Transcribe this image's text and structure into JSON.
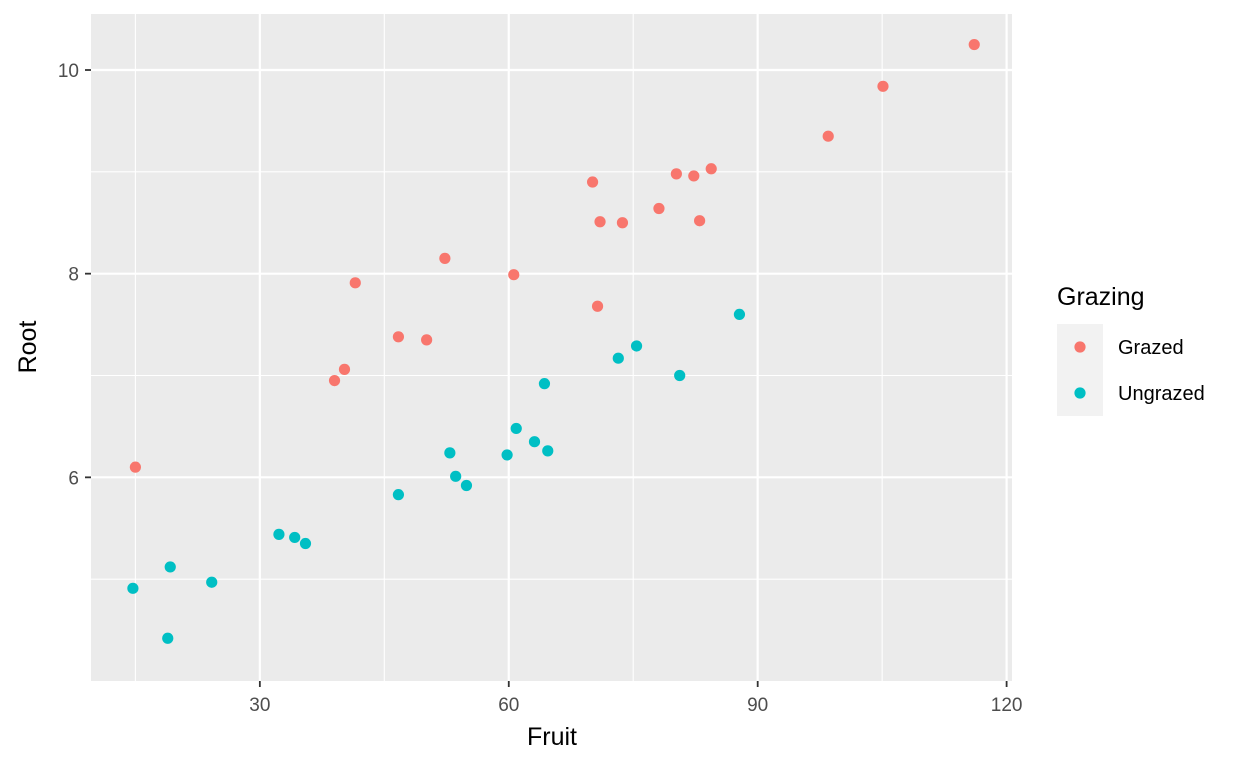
{
  "chart_data": {
    "type": "scatter",
    "xlabel": "Fruit",
    "ylabel": "Root",
    "xlim": [
      9.65,
      120.65
    ],
    "ylim": [
      4.0,
      10.55
    ],
    "x_ticks": [
      30,
      60,
      90,
      120
    ],
    "x_tick_labels": [
      "30",
      "60",
      "90",
      "120"
    ],
    "y_ticks": [
      6,
      8,
      10
    ],
    "y_tick_labels": [
      "6",
      "8",
      "10"
    ],
    "grid": true,
    "legend": {
      "title": "Grazing",
      "position": "right"
    },
    "series": [
      {
        "name": "Grazed",
        "color": "#F8766D",
        "points": [
          [
            15.0,
            6.1
          ],
          [
            39.0,
            6.95
          ],
          [
            40.2,
            7.06
          ],
          [
            41.5,
            7.91
          ],
          [
            46.7,
            7.38
          ],
          [
            50.1,
            7.35
          ],
          [
            52.3,
            8.15
          ],
          [
            60.6,
            7.99
          ],
          [
            70.1,
            8.9
          ],
          [
            70.7,
            7.68
          ],
          [
            71.0,
            8.51
          ],
          [
            73.7,
            8.5
          ],
          [
            78.1,
            8.64
          ],
          [
            80.2,
            8.98
          ],
          [
            82.3,
            8.96
          ],
          [
            83.0,
            8.52
          ],
          [
            84.4,
            9.03
          ],
          [
            98.5,
            9.35
          ],
          [
            105.1,
            9.84
          ],
          [
            116.1,
            10.25
          ]
        ]
      },
      {
        "name": "Ungrazed",
        "color": "#00BFC4",
        "points": [
          [
            14.7,
            4.91
          ],
          [
            18.9,
            4.42
          ],
          [
            19.2,
            5.12
          ],
          [
            24.2,
            4.97
          ],
          [
            32.3,
            5.44
          ],
          [
            34.2,
            5.41
          ],
          [
            35.5,
            5.35
          ],
          [
            46.7,
            5.83
          ],
          [
            52.9,
            6.24
          ],
          [
            53.6,
            6.01
          ],
          [
            54.9,
            5.92
          ],
          [
            59.8,
            6.22
          ],
          [
            60.9,
            6.48
          ],
          [
            63.1,
            6.35
          ],
          [
            64.3,
            6.92
          ],
          [
            64.7,
            6.26
          ],
          [
            73.2,
            7.17
          ],
          [
            75.4,
            7.29
          ],
          [
            80.6,
            7.0
          ],
          [
            87.8,
            7.6
          ]
        ]
      }
    ]
  }
}
